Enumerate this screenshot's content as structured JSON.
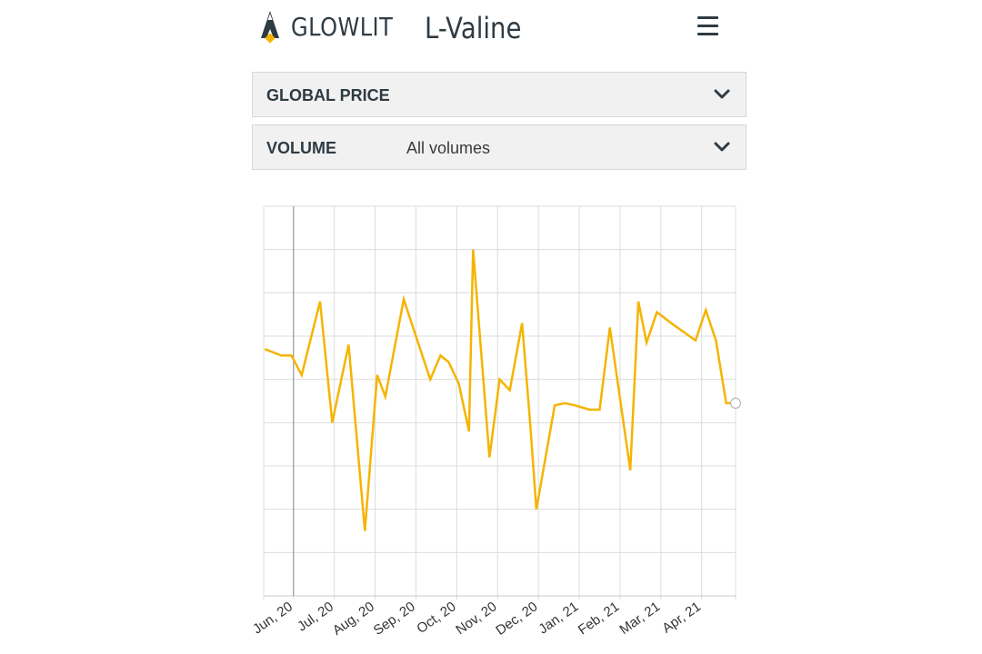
{
  "header": {
    "logo_text": "GLOWLIT",
    "title": "L-Valine",
    "menu_icon": "hamburger-menu-icon"
  },
  "filters": {
    "price": {
      "label": "GLOBAL PRICE",
      "value": ""
    },
    "volume": {
      "label": "VOLUME",
      "value": "All volumes"
    }
  },
  "colors": {
    "accent": "#f5b400",
    "text": "#2f3b43",
    "grid": "#dcdcdc"
  },
  "chart_data": {
    "type": "line",
    "title": "",
    "xlabel": "",
    "ylabel": "",
    "grid": true,
    "ylim": [
      0,
      9
    ],
    "x_ticks": [
      "Jun, 20",
      "Jul, 20",
      "Aug, 20",
      "Sep, 20",
      "Oct, 20",
      "Nov, 20",
      "Dec, 20",
      "Jan, 21",
      "Feb, 21",
      "Mar, 21",
      "Apr, 21"
    ],
    "x_tick_positions": [
      1,
      2,
      3,
      4,
      5,
      6,
      7,
      8,
      9,
      10,
      11
    ],
    "xlim": [
      0.27,
      11.83
    ],
    "series": [
      {
        "color": "#f5b400",
        "x": [
          0.3,
          0.7,
          0.95,
          1.2,
          1.65,
          1.95,
          2.35,
          2.75,
          3.05,
          3.25,
          3.7,
          4.35,
          4.6,
          4.8,
          5.05,
          5.3,
          5.4,
          5.8,
          6.05,
          6.3,
          6.6,
          6.8,
          6.95,
          7.4,
          7.65,
          7.9,
          8.25,
          8.5,
          8.75,
          9.25,
          9.45,
          9.65,
          9.9,
          10.05,
          10.25,
          10.85,
          11.1,
          11.35,
          11.6,
          11.75
        ],
        "y": [
          5.7,
          5.55,
          5.55,
          5.1,
          6.8,
          4.0,
          5.8,
          1.5,
          5.1,
          4.6,
          6.85,
          5.0,
          5.55,
          5.4,
          4.9,
          3.8,
          8.0,
          3.2,
          5.0,
          4.75,
          6.3,
          3.95,
          2.0,
          4.4,
          4.45,
          4.4,
          4.3,
          4.3,
          6.2,
          2.9,
          6.8,
          5.85,
          6.55,
          6.45,
          6.3,
          5.9,
          6.6,
          5.9,
          4.45,
          4.45
        ]
      }
    ],
    "end_marker": {
      "x": 11.83,
      "y": 4.45
    }
  }
}
